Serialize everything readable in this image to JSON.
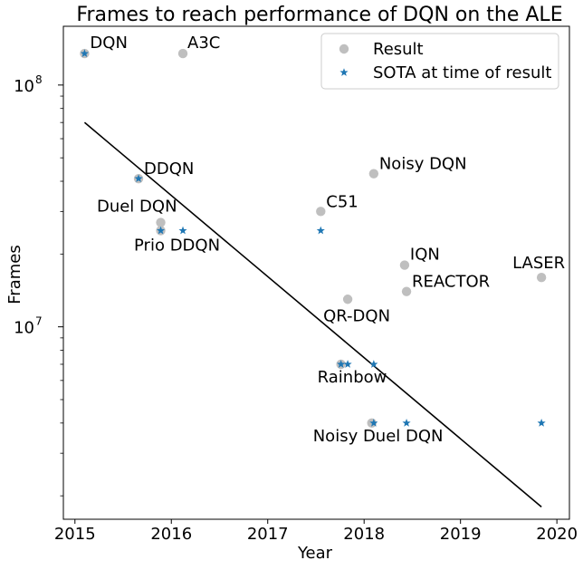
{
  "chart_data": {
    "type": "scatter",
    "title": "Frames to reach performance of DQN on the ALE",
    "xlabel": "Year",
    "ylabel": "Frames",
    "xlim": [
      2014.88,
      2020.13
    ],
    "ylim": [
      1600000,
      175000000
    ],
    "yscale": "log",
    "grid": false,
    "legend_position": "top-right",
    "x_ticks": [
      {
        "value": 2015,
        "label": "2015"
      },
      {
        "value": 2016,
        "label": "2016"
      },
      {
        "value": 2017,
        "label": "2017"
      },
      {
        "value": 2018,
        "label": "2018"
      },
      {
        "value": 2019,
        "label": "2019"
      },
      {
        "value": 2020,
        "label": "2020"
      }
    ],
    "y_ticks": [
      {
        "value": 10000000,
        "base": "10",
        "exp": "7"
      },
      {
        "value": 100000000,
        "base": "10",
        "exp": "8"
      }
    ],
    "legend": [
      {
        "label": "Result",
        "marker": "circle",
        "color": "#bfbfbf"
      },
      {
        "label": "SOTA at time of result",
        "marker": "star",
        "color": "#1f77b4"
      }
    ],
    "colors": {
      "result": "#bfbfbf",
      "sota": "#1f77b4",
      "trend": "#000000"
    },
    "series": [
      {
        "name": "Result",
        "marker": "circle",
        "points": [
          {
            "x": 2015.1,
            "y": 135000000,
            "label": "DQN",
            "anchor": "start",
            "dx": 6,
            "dy": -6
          },
          {
            "x": 2016.12,
            "y": 135000000,
            "label": "A3C",
            "anchor": "start",
            "dx": 5,
            "dy": -6
          },
          {
            "x": 2015.66,
            "y": 41000000,
            "label": "DDQN",
            "anchor": "start",
            "dx": 6,
            "dy": -5
          },
          {
            "x": 2015.89,
            "y": 27000000,
            "label": "Duel DQN",
            "anchor": "end",
            "dx": 18,
            "dy": -12
          },
          {
            "x": 2015.89,
            "y": 25000000,
            "label": "Prio DDQN",
            "anchor": "middle",
            "dx": 18,
            "dy": 22
          },
          {
            "x": 2017.55,
            "y": 30000000,
            "label": "C51",
            "anchor": "start",
            "dx": 6,
            "dy": -5
          },
          {
            "x": 2018.1,
            "y": 43000000,
            "label": "Noisy DQN",
            "anchor": "start",
            "dx": 6,
            "dy": -5
          },
          {
            "x": 2018.42,
            "y": 18000000,
            "label": "IQN",
            "anchor": "start",
            "dx": 6,
            "dy": -6
          },
          {
            "x": 2018.44,
            "y": 14000000,
            "label": "REACTOR",
            "anchor": "start",
            "dx": 6,
            "dy": -5
          },
          {
            "x": 2019.84,
            "y": 16000000,
            "label": "LASER",
            "anchor": "middle",
            "dx": -3,
            "dy": -10
          },
          {
            "x": 2017.83,
            "y": 13000000,
            "label": "QR-DQN",
            "anchor": "start",
            "dx": -27,
            "dy": 24
          },
          {
            "x": 2017.76,
            "y": 7000000,
            "label": "Rainbow",
            "anchor": "start",
            "dx": -26,
            "dy": 20
          },
          {
            "x": 2018.08,
            "y": 4000000,
            "label": "Noisy Duel DQN",
            "anchor": "start",
            "dx": -65,
            "dy": 20
          }
        ]
      },
      {
        "name": "SOTA at time of result",
        "marker": "star",
        "points": [
          {
            "x": 2015.1,
            "y": 135000000
          },
          {
            "x": 2015.66,
            "y": 41000000
          },
          {
            "x": 2015.89,
            "y": 25000000
          },
          {
            "x": 2016.12,
            "y": 25000000
          },
          {
            "x": 2017.55,
            "y": 25000000
          },
          {
            "x": 2017.76,
            "y": 7000000
          },
          {
            "x": 2017.83,
            "y": 7000000
          },
          {
            "x": 2018.1,
            "y": 7000000
          },
          {
            "x": 2018.1,
            "y": 4000000
          },
          {
            "x": 2018.44,
            "y": 4000000
          },
          {
            "x": 2019.84,
            "y": 4000000
          }
        ]
      }
    ],
    "trend_line": {
      "x": [
        2015.1,
        2019.84
      ],
      "y": [
        70000000,
        1800000
      ]
    }
  }
}
